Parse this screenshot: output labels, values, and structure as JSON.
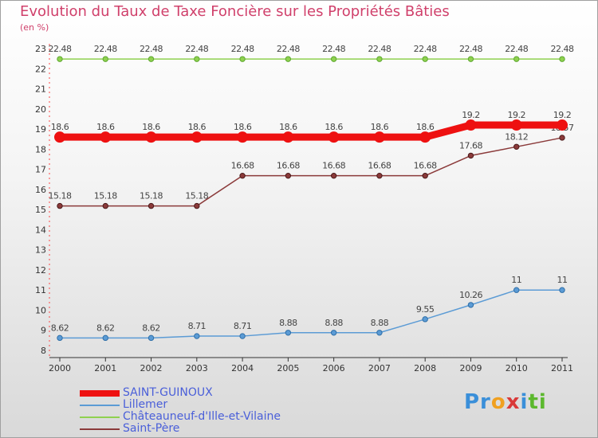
{
  "title": "Evolution du Taux de Taxe Foncière sur les Propriétés Bâties",
  "subtitle": "(en %)",
  "logo": {
    "parts": [
      "Pr",
      "o",
      "x",
      "i",
      "ti"
    ],
    "colors": [
      "#3a8fd9",
      "#f0a020",
      "#d93a3a",
      "#3a8fd9",
      "#5cb82e"
    ]
  },
  "colors": {
    "title": "#d0406b",
    "axis": "#333333",
    "grid_tick": "#ff4444",
    "legend_text": "#4a5fd9"
  },
  "chart_data": {
    "type": "line",
    "x": [
      "2000",
      "2001",
      "2002",
      "2003",
      "2004",
      "2005",
      "2006",
      "2007",
      "2008",
      "2009",
      "2010",
      "2011"
    ],
    "y_ticks": [
      "8",
      "9",
      "10",
      "11",
      "12",
      "13",
      "14",
      "15",
      "16",
      "17",
      "18",
      "19",
      "20",
      "21",
      "22",
      "23"
    ],
    "ylim": [
      8,
      23
    ],
    "series": [
      {
        "name": "SAINT-GUINOUX",
        "color": "#ee1111",
        "thick": true,
        "values": [
          18.6,
          18.6,
          18.6,
          18.6,
          18.6,
          18.6,
          18.6,
          18.6,
          18.6,
          19.2,
          19.2,
          19.2
        ],
        "labels": [
          "18.6",
          "18.6",
          "18.6",
          "18.6",
          "18.6",
          "18.6",
          "18.6",
          "18.6",
          "18.6",
          "19.2",
          "19.2",
          "19.2"
        ]
      },
      {
        "name": "Lillemer",
        "color": "#5b9bd5",
        "thick": false,
        "values": [
          8.62,
          8.62,
          8.62,
          8.71,
          8.71,
          8.88,
          8.88,
          8.88,
          9.55,
          10.26,
          11,
          11
        ],
        "labels": [
          "8.62",
          "8.62",
          "8.62",
          "8.71",
          "8.71",
          "8.88",
          "8.88",
          "8.88",
          "9.55",
          "10.26",
          "11",
          "11"
        ]
      },
      {
        "name": "Châteauneuf-d'Ille-et-Vilaine",
        "color": "#8fd14f",
        "thick": false,
        "values": [
          22.48,
          22.48,
          22.48,
          22.48,
          22.48,
          22.48,
          22.48,
          22.48,
          22.48,
          22.48,
          22.48,
          22.48
        ],
        "labels": [
          "22.48",
          "22.48",
          "22.48",
          "22.48",
          "22.48",
          "22.48",
          "22.48",
          "22.48",
          "22.48",
          "22.48",
          "22.48",
          "22.48"
        ]
      },
      {
        "name": "Saint-Père",
        "color": "#8b3a3a",
        "thick": false,
        "values": [
          15.18,
          15.18,
          15.18,
          15.18,
          16.68,
          16.68,
          16.68,
          16.68,
          16.68,
          17.68,
          18.12,
          18.57
        ],
        "labels": [
          "15.18",
          "15.18",
          "15.18",
          "15.18",
          "16.68",
          "16.68",
          "16.68",
          "16.68",
          "16.68",
          "17.68",
          "18.12",
          "18.57"
        ]
      }
    ]
  }
}
